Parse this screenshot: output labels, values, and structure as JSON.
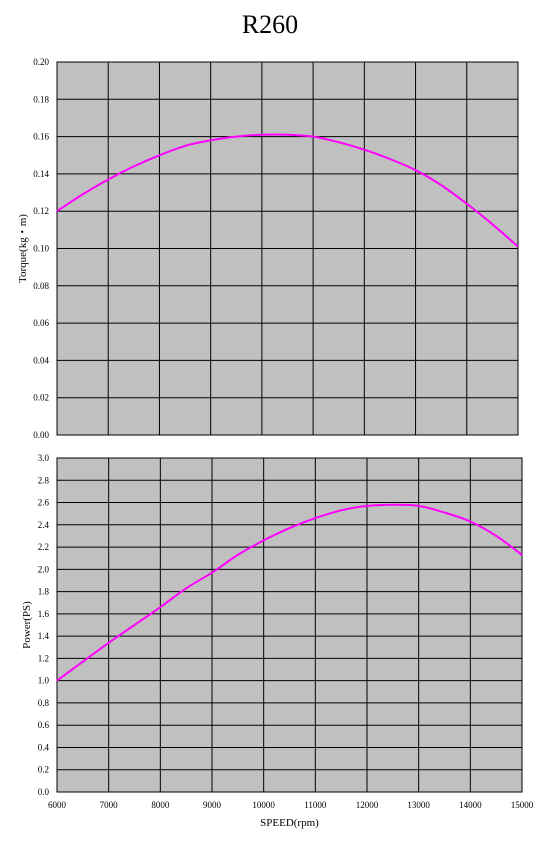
{
  "title": "R260",
  "colors": {
    "plot_bg": "#c0c0c0",
    "grid": "#000000",
    "curve": "#ff00ff"
  },
  "chart_data": [
    {
      "type": "line",
      "ylabel": "Torque(kg・m)",
      "xlabel": "",
      "xlim": [
        6000,
        15000
      ],
      "ylim": [
        0,
        0.2
      ],
      "x_ticks": [
        6000,
        7000,
        8000,
        9000,
        10000,
        11000,
        12000,
        13000,
        14000,
        15000
      ],
      "y_ticks": [
        "0.00",
        "0.02",
        "0.04",
        "0.06",
        "0.08",
        "0.10",
        "0.12",
        "0.14",
        "0.16",
        "0.18",
        "0.20"
      ],
      "show_x_tick_labels": false,
      "grid": true,
      "series": [
        {
          "x": [
            6000,
            6500,
            7000,
            7500,
            8000,
            8500,
            9000,
            9500,
            10000,
            10500,
            11000,
            11500,
            12000,
            12500,
            13000,
            13500,
            14000,
            14500,
            15000
          ],
          "y": [
            0.12,
            0.129,
            0.137,
            0.144,
            0.15,
            0.155,
            0.158,
            0.16,
            0.161,
            0.161,
            0.16,
            0.157,
            0.153,
            0.148,
            0.142,
            0.134,
            0.124,
            0.113,
            0.101
          ]
        }
      ]
    },
    {
      "type": "line",
      "ylabel": "Power(PS)",
      "xlabel": "SPEED(rpm)",
      "xlim": [
        6000,
        15000
      ],
      "ylim": [
        0,
        3.0
      ],
      "x_ticks": [
        "6000",
        "7000",
        "8000",
        "9000",
        "10000",
        "11000",
        "12000",
        "13000",
        "14000",
        "15000"
      ],
      "y_ticks": [
        "0.0",
        "0.2",
        "0.4",
        "0.6",
        "0.8",
        "1.0",
        "1.2",
        "1.4",
        "1.6",
        "1.8",
        "2.0",
        "2.2",
        "2.4",
        "2.6",
        "2.8",
        "3.0"
      ],
      "show_x_tick_labels": true,
      "grid": true,
      "series": [
        {
          "x": [
            6000,
            6500,
            7000,
            7500,
            8000,
            8500,
            9000,
            9500,
            10000,
            10500,
            11000,
            11500,
            12000,
            12500,
            13000,
            13500,
            14000,
            14500,
            15000
          ],
          "y": [
            1.0,
            1.17,
            1.34,
            1.5,
            1.66,
            1.83,
            1.97,
            2.13,
            2.26,
            2.37,
            2.46,
            2.53,
            2.57,
            2.58,
            2.57,
            2.51,
            2.43,
            2.3,
            2.13
          ]
        }
      ]
    }
  ]
}
